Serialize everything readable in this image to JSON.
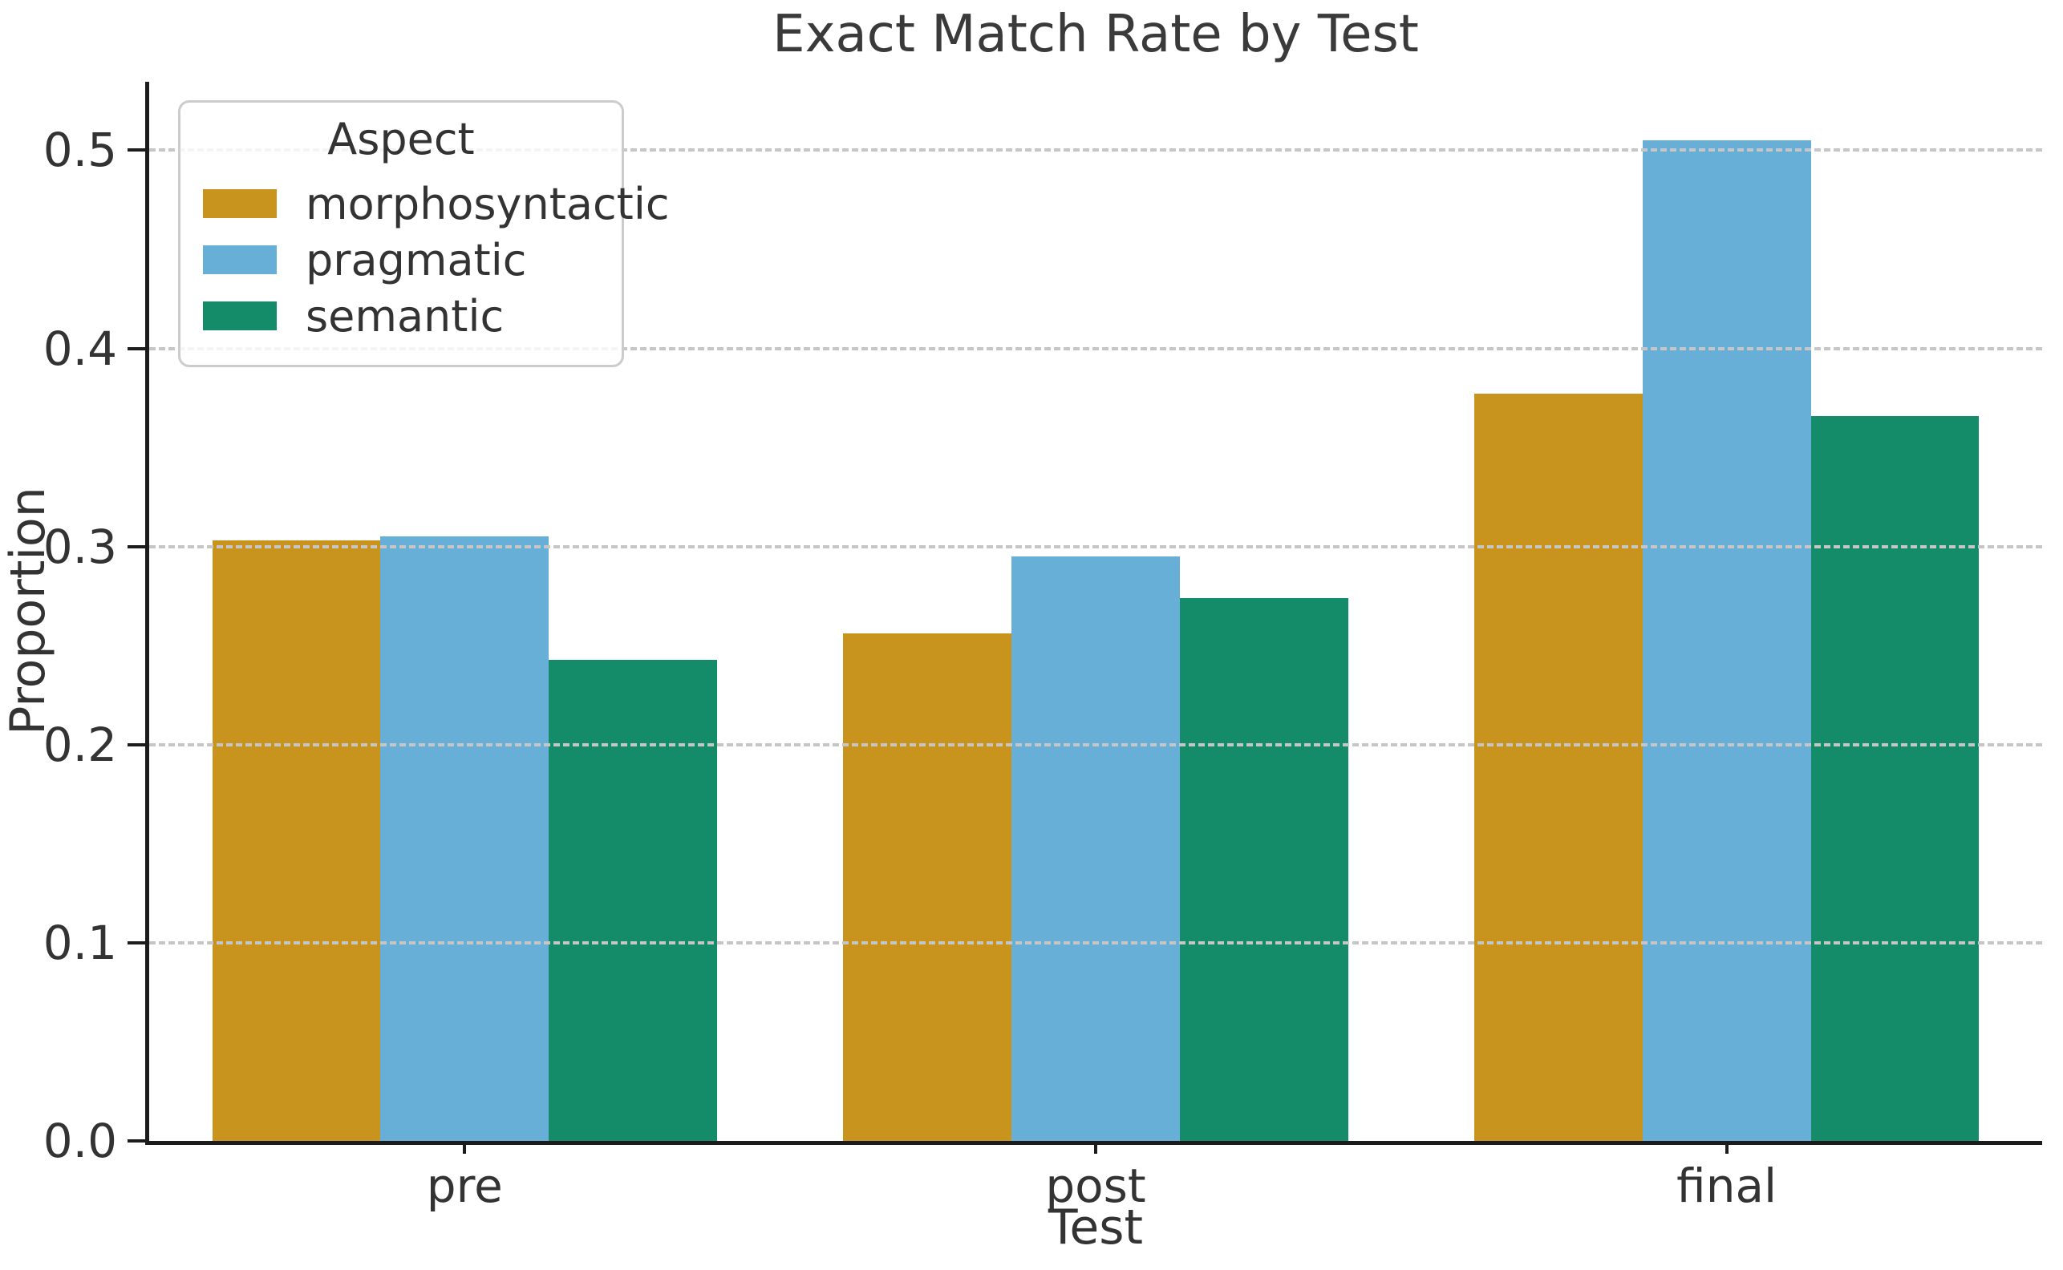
{
  "figure": {
    "background": "#ffffff",
    "text_color": "#333333",
    "spine_color": "#1c1c1c",
    "grid_color": "#c6c6c6"
  },
  "chart_data": {
    "type": "bar",
    "title": "Exact Match Rate by Test",
    "xlabel": "Test",
    "ylabel": "Proportion",
    "categories": [
      "pre",
      "post",
      "final"
    ],
    "series": [
      {
        "name": "morphosyntactic",
        "color": "#C8941E",
        "values": [
          0.303,
          0.256,
          0.377
        ]
      },
      {
        "name": "pragmatic",
        "color": "#68AFD8",
        "values": [
          0.305,
          0.295,
          0.505
        ]
      },
      {
        "name": "semantic",
        "color": "#148C6A",
        "values": [
          0.243,
          0.274,
          0.366
        ]
      }
    ],
    "yticks": [
      0.0,
      0.1,
      0.2,
      0.3,
      0.4,
      0.5
    ],
    "ylim": [
      0,
      0.5346
    ],
    "grid": "horizontal-dashed",
    "grid_above_bars": true,
    "legend": {
      "title": "Aspect",
      "position": "upper-left",
      "entries": [
        "morphosyntactic",
        "pragmatic",
        "semantic"
      ]
    }
  }
}
